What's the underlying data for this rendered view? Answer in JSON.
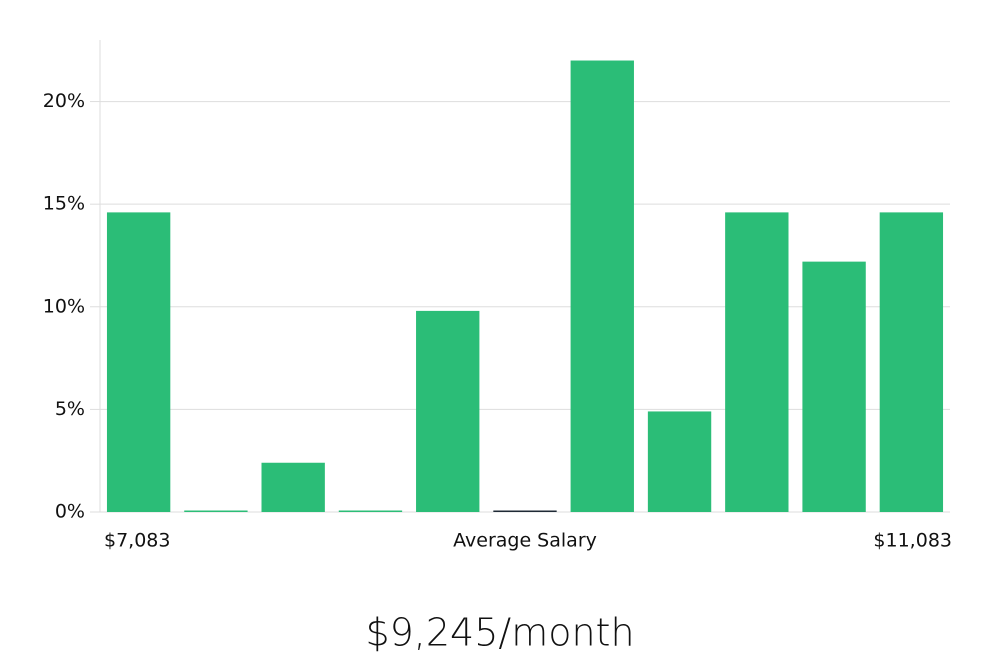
{
  "chart_data": {
    "type": "bar",
    "categories": [
      null,
      null,
      null,
      null,
      null,
      null,
      null,
      null,
      null,
      null,
      null
    ],
    "values": [
      14.6,
      0,
      2.4,
      0,
      9.8,
      0,
      22.0,
      4.9,
      14.6,
      12.2,
      14.6
    ],
    "color": "#2bbd77",
    "highlight_index": 5,
    "highlight_color": "#1f2a36",
    "ylim": [
      0,
      23
    ],
    "yticks": [
      {
        "value": 0,
        "label": "0%"
      },
      {
        "value": 5,
        "label": "5%"
      },
      {
        "value": 10,
        "label": "10%"
      },
      {
        "value": 15,
        "label": "15%"
      },
      {
        "value": 20,
        "label": "20%"
      }
    ],
    "grid": true,
    "x_range_labels": [
      "$7,083",
      "$11,083"
    ],
    "xlabel": "Average Salary",
    "footer": "$9,245/month"
  }
}
